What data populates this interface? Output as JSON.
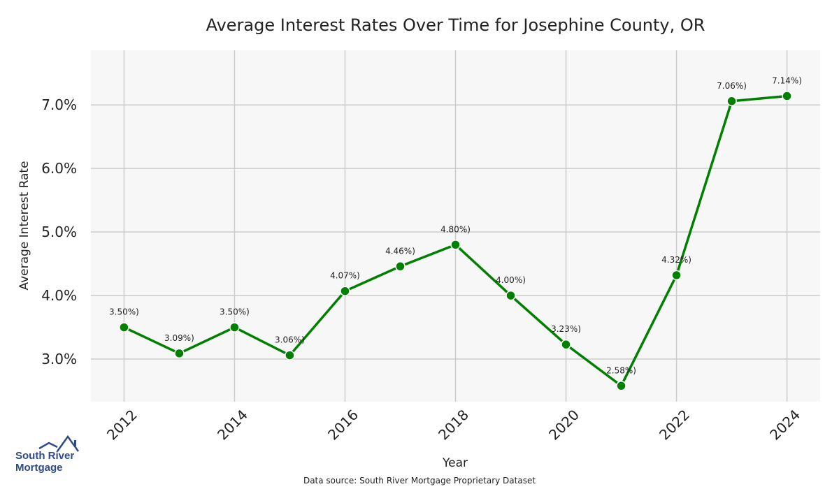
{
  "chart_data": {
    "type": "line",
    "title": "Average Interest Rates Over Time for Josephine County, OR",
    "xlabel": "Year",
    "ylabel": "Average Interest Rate",
    "x": [
      2012,
      2013,
      2014,
      2015,
      2016,
      2017,
      2018,
      2019,
      2020,
      2021,
      2022,
      2023,
      2024
    ],
    "series": [
      {
        "values": [
          3.5,
          3.09,
          3.5,
          3.06,
          4.07,
          4.46,
          4.8,
          4.0,
          3.23,
          2.58,
          4.32,
          7.06,
          7.14
        ],
        "color": "#008000"
      }
    ],
    "data_labels": [
      "3.50%)",
      "3.09%)",
      "3.50%)",
      "3.06%)",
      "4.07%)",
      "4.46%)",
      "4.80%)",
      "4.00%)",
      "3.23%)",
      "2.58%)",
      "4.32%)",
      "7.06%)",
      "7.14%)"
    ],
    "x_ticks": [
      "2012",
      "2014",
      "2016",
      "2018",
      "2020",
      "2022",
      "2024"
    ],
    "y_ticks": [
      "3.0%",
      "4.0%",
      "5.0%",
      "6.0%",
      "7.0%"
    ],
    "xlim": [
      2011.4,
      2024.6
    ],
    "ylim": [
      2.33,
      7.86
    ],
    "grid": true,
    "background": "#f7f7f7",
    "grid_color": "#cccccc"
  },
  "footer": "Data source: South River Mortgage Proprietary Dataset",
  "logo": {
    "line1": "South River",
    "line2": "Mortgage"
  }
}
